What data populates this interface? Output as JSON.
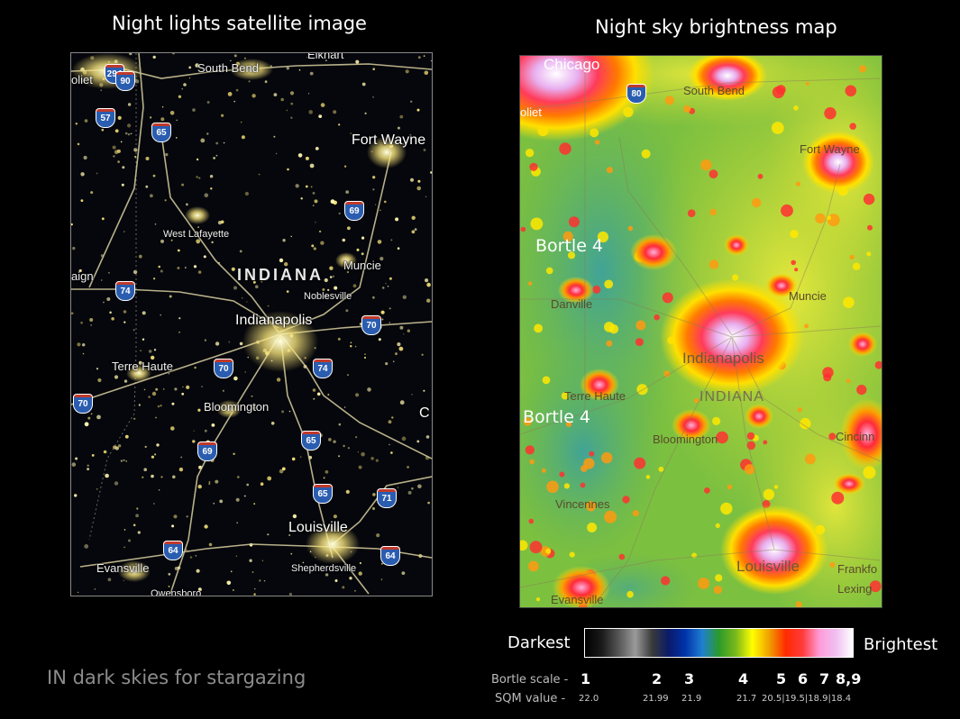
{
  "titles": {
    "left": "Night lights satellite image",
    "right": "Night sky brightness map"
  },
  "left_map": {
    "labels": {
      "elkhart": "Elkhart",
      "south_bend": "South Bend",
      "joliet": "oliet",
      "fort_wayne": "Fort Wayne",
      "west_lafayette": "West Lafayette",
      "indiana": "INDIANA",
      "muncie": "Muncie",
      "noblesville": "Noblesville",
      "champaign": "aign",
      "indianapolis": "Indianapolis",
      "terre_haute": "Terre Haute",
      "bloomington": "Bloomington",
      "c": "C",
      "louisville": "Louisville",
      "evansville": "Evansville",
      "shepherdsville": "Shepherdsville",
      "owensboro": "Owensboro"
    },
    "shields": {
      "i294": "294",
      "i90": "90",
      "i57": "57",
      "i65n": "65",
      "i69n": "69",
      "i74w": "74",
      "i70e": "70",
      "i70c": "70",
      "i74e": "74",
      "i70w": "70",
      "i69s": "69",
      "i65c": "65",
      "i65s": "65",
      "i71": "71",
      "i64w": "64",
      "i64e": "64"
    }
  },
  "right_map": {
    "labels": {
      "chicago": "Chicago",
      "joliet": "oliet",
      "south_bend": "South Bend",
      "fort_wayne": "Fort Wayne",
      "muncie": "Muncie",
      "danville": "Danville",
      "indianapolis": "Indianapolis",
      "indiana": "INDIANA",
      "terre_haute": "Terre Haute",
      "bloomington": "Bloomington",
      "cincinnati": "Cincinn",
      "vincennes": "Vincennes",
      "louisville": "Louisville",
      "frankfort": "Frankfo",
      "lexington": "Lexing",
      "evansville": "Evansville",
      "i80": "80"
    },
    "bortle_tag_1": "Bortle 4",
    "bortle_tag_2": "Bortle 4"
  },
  "legend": {
    "darkest": "Darkest",
    "brightest": "Brightest",
    "colors": [
      "#000000",
      "#1a1a1a",
      "#555555",
      "#9a9a9a",
      "#3a3a3a",
      "#0a1a6a",
      "#0033aa",
      "#1f7fd0",
      "#2a9a2a",
      "#7ab81a",
      "#ffff00",
      "#f0a000",
      "#ff2a00",
      "#ff3b3b",
      "#ff9ad8",
      "#f0c0f0",
      "#ffffff"
    ],
    "bortle_label": "Bortle scale -",
    "sqm_label": "SQM value -",
    "bortle_values": [
      "1",
      "2",
      "3",
      "4",
      "5",
      "6",
      "7",
      "8,9"
    ],
    "sqm_values": [
      "22.0",
      "21.99",
      "21.9",
      "21.7",
      "20.5|19.5|18.9|18.4"
    ]
  },
  "caption": "IN dark skies for stargazing"
}
